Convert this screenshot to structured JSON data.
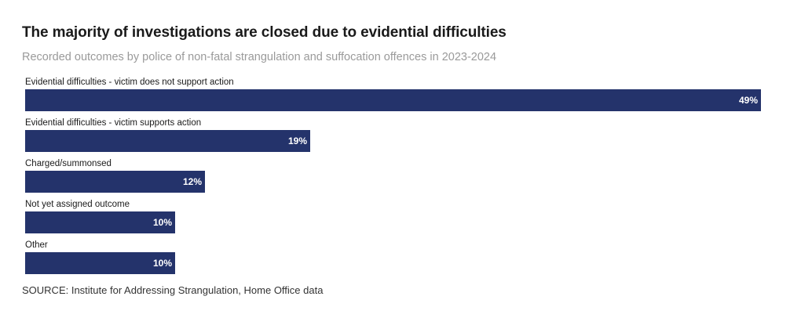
{
  "chart_data": {
    "type": "bar",
    "orientation": "horizontal",
    "title": "The majority of investigations are closed due to evidential difficulties",
    "subtitle": "Recorded outcomes by police of non-fatal strangulation and suffocation offences in 2023-2024",
    "categories": [
      "Evidential difficulties - victim does not support action",
      "Evidential difficulties - victim supports action",
      "Charged/summonsed",
      "Not yet assigned outcome",
      "Other"
    ],
    "values": [
      49,
      19,
      12,
      10,
      10
    ],
    "value_labels": [
      "49%",
      "19%",
      "12%",
      "10%",
      "10%"
    ],
    "xlim": [
      0,
      49
    ],
    "unit": "%",
    "grid": false,
    "legend": "none",
    "bar_color": "#24336b",
    "source": "SOURCE: Institute for Addressing Strangulation, Home Office data"
  }
}
